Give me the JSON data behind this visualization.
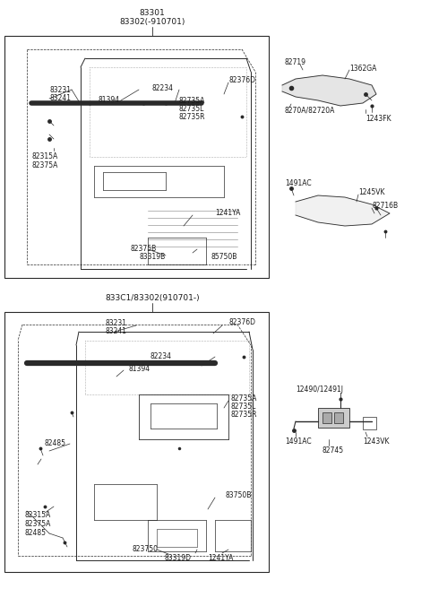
{
  "bg_color": "#ffffff",
  "line_color": "#2a2a2a",
  "text_color": "#1a1a1a",
  "title1": "83301",
  "title1b": "83302(-910701)",
  "title2": "833C1/83302(910701-)",
  "fig_width": 4.8,
  "fig_height": 6.57,
  "dpi": 100
}
